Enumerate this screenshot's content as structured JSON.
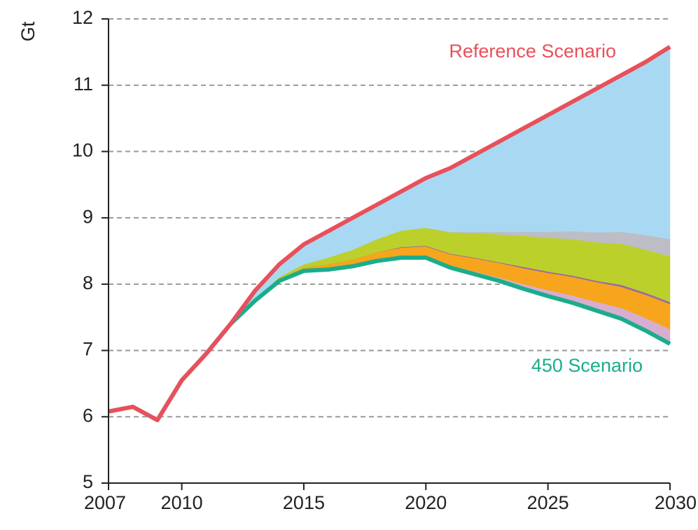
{
  "chart_data": {
    "type": "line",
    "y_label": "Gt",
    "x": [
      2007,
      2008,
      2009,
      2010,
      2011,
      2012,
      2013,
      2014,
      2015,
      2016,
      2017,
      2018,
      2019,
      2020,
      2021,
      2022,
      2023,
      2024,
      2025,
      2026,
      2027,
      2028,
      2029,
      2030
    ],
    "xlim": [
      2007,
      2030
    ],
    "xticks": [
      2007,
      2010,
      2015,
      2020,
      2025,
      2030
    ],
    "ylim": [
      5,
      12
    ],
    "yticks": [
      5,
      6,
      7,
      8,
      9,
      10,
      11,
      12
    ],
    "grid": true,
    "series": [
      {
        "name": "Reference Scenario",
        "color": "#e8505b",
        "values": [
          6.08,
          6.15,
          5.95,
          6.55,
          6.95,
          7.4,
          7.9,
          8.3,
          8.6,
          8.8,
          9.0,
          9.2,
          9.4,
          9.6,
          9.75,
          9.95,
          10.15,
          10.35,
          10.55,
          10.75,
          10.95,
          11.15,
          11.35,
          11.58
        ]
      },
      {
        "name": "450 Scenario",
        "color": "#1aad8c",
        "values": [
          6.08,
          6.15,
          5.95,
          6.55,
          6.95,
          7.4,
          7.75,
          8.05,
          8.2,
          8.22,
          8.27,
          8.35,
          8.4,
          8.4,
          8.25,
          8.15,
          8.05,
          7.93,
          7.82,
          7.72,
          7.6,
          7.48,
          7.3,
          7.1
        ]
      }
    ],
    "bands": [
      {
        "color": "#d8aed0",
        "values": [
          0,
          0,
          0,
          0,
          0,
          0,
          0,
          0,
          0,
          0,
          0,
          0.01,
          0.01,
          0.02,
          0.03,
          0.04,
          0.05,
          0.07,
          0.09,
          0.11,
          0.13,
          0.16,
          0.19,
          0.22
        ]
      },
      {
        "color": "#f7a51c",
        "values": [
          0,
          0,
          0,
          0,
          0,
          0,
          0.01,
          0.03,
          0.05,
          0.08,
          0.1,
          0.12,
          0.14,
          0.15,
          0.17,
          0.2,
          0.22,
          0.24,
          0.26,
          0.28,
          0.3,
          0.32,
          0.35,
          0.38
        ]
      },
      {
        "color": "#9a6aa6",
        "values": [
          0,
          0,
          0,
          0,
          0,
          0,
          0,
          0,
          0,
          0,
          0,
          0,
          0.01,
          0.01,
          0.01,
          0.01,
          0.01,
          0.02,
          0.02,
          0.02,
          0.02,
          0.03,
          0.03,
          0.03
        ]
      },
      {
        "color": "#bcd02c",
        "values": [
          0,
          0,
          0,
          0,
          0,
          0,
          0.01,
          0.03,
          0.05,
          0.1,
          0.15,
          0.2,
          0.25,
          0.27,
          0.32,
          0.37,
          0.42,
          0.47,
          0.51,
          0.55,
          0.58,
          0.62,
          0.65,
          0.69
        ]
      },
      {
        "color": "#bdbdc6",
        "values": [
          0,
          0,
          0,
          0,
          0,
          0,
          0,
          0,
          0,
          0,
          0,
          0,
          0,
          0,
          0.01,
          0.02,
          0.04,
          0.06,
          0.09,
          0.12,
          0.15,
          0.18,
          0.22,
          0.26
        ]
      },
      {
        "color": "#a9d9f2",
        "values": [
          0,
          0,
          0,
          0,
          0,
          0,
          0.13,
          0.19,
          0.3,
          0.4,
          0.48,
          0.52,
          0.59,
          0.75,
          0.96,
          1.16,
          1.36,
          1.56,
          1.76,
          1.95,
          2.17,
          2.36,
          2.61,
          2.9
        ]
      }
    ]
  }
}
